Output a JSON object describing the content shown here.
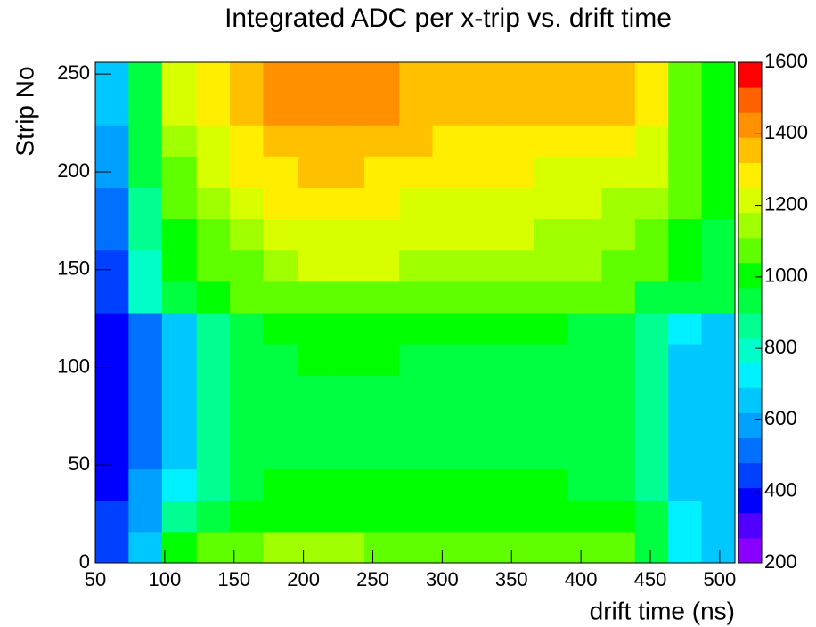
{
  "chart_data": {
    "type": "heatmap",
    "title": "Integrated ADC per x-trip vs. drift time",
    "xlabel": "drift time (ns)",
    "ylabel": "Strip No",
    "xbins": [
      50,
      74,
      98,
      123,
      147,
      171,
      196,
      220,
      244,
      269,
      293,
      317,
      342,
      366,
      390,
      415,
      439,
      463,
      487,
      511
    ],
    "ybins": [
      0,
      16,
      32,
      48,
      64,
      80,
      96,
      112,
      128,
      144,
      160,
      176,
      192,
      208,
      224,
      240,
      256
    ],
    "z": [
      [
        450,
        650,
        1000,
        1050,
        1100,
        1150,
        1150,
        1150,
        1100,
        1100,
        1100,
        1100,
        1100,
        1100,
        1100,
        1050,
        900,
        700,
        650
      ],
      [
        420,
        600,
        850,
        950,
        1000,
        1000,
        1000,
        1000,
        1000,
        1000,
        1000,
        1000,
        1000,
        1000,
        1000,
        980,
        900,
        700,
        650
      ],
      [
        400,
        550,
        700,
        880,
        950,
        980,
        980,
        980,
        970,
        970,
        970,
        970,
        970,
        970,
        960,
        940,
        850,
        680,
        650
      ],
      [
        380,
        530,
        660,
        860,
        930,
        960,
        960,
        960,
        960,
        960,
        960,
        960,
        960,
        950,
        940,
        920,
        850,
        670,
        640
      ],
      [
        370,
        520,
        650,
        850,
        920,
        950,
        950,
        950,
        950,
        950,
        950,
        950,
        950,
        940,
        930,
        910,
        840,
        670,
        640
      ],
      [
        370,
        520,
        640,
        840,
        920,
        950,
        960,
        960,
        960,
        960,
        950,
        950,
        950,
        940,
        930,
        910,
        840,
        670,
        640
      ],
      [
        380,
        520,
        650,
        850,
        930,
        960,
        970,
        970,
        970,
        960,
        960,
        960,
        960,
        950,
        940,
        920,
        840,
        680,
        650
      ],
      [
        400,
        520,
        660,
        860,
        940,
        980,
        990,
        990,
        990,
        980,
        980,
        980,
        980,
        970,
        960,
        940,
        860,
        700,
        680
      ],
      [
        450,
        800,
        950,
        1000,
        1050,
        1100,
        1100,
        1100,
        1100,
        1100,
        1100,
        1100,
        1100,
        1100,
        1080,
        1050,
        950,
        950,
        900
      ],
      [
        460,
        820,
        980,
        1050,
        1100,
        1150,
        1180,
        1180,
        1180,
        1170,
        1160,
        1150,
        1150,
        1140,
        1120,
        1100,
        1050,
        1000,
        950
      ],
      [
        480,
        850,
        1000,
        1080,
        1150,
        1200,
        1220,
        1220,
        1220,
        1200,
        1200,
        1190,
        1180,
        1170,
        1150,
        1120,
        1080,
        1020,
        960
      ],
      [
        500,
        880,
        1050,
        1120,
        1200,
        1250,
        1260,
        1260,
        1250,
        1240,
        1230,
        1220,
        1210,
        1200,
        1190,
        1160,
        1120,
        1040,
        980
      ],
      [
        550,
        900,
        1100,
        1180,
        1250,
        1300,
        1320,
        1320,
        1300,
        1280,
        1260,
        1250,
        1250,
        1240,
        1230,
        1220,
        1180,
        1060,
        1000
      ],
      [
        600,
        920,
        1150,
        1230,
        1300,
        1350,
        1380,
        1380,
        1350,
        1320,
        1300,
        1290,
        1290,
        1280,
        1300,
        1280,
        1220,
        1080,
        1000
      ],
      [
        620,
        930,
        1180,
        1260,
        1350,
        1400,
        1420,
        1420,
        1390,
        1350,
        1330,
        1320,
        1320,
        1320,
        1350,
        1320,
        1250,
        1100,
        1010
      ],
      [
        640,
        950,
        1200,
        1280,
        1380,
        1420,
        1430,
        1430,
        1400,
        1370,
        1350,
        1350,
        1350,
        1350,
        1380,
        1350,
        1260,
        1100,
        1020
      ]
    ],
    "xlim": [
      50,
      511
    ],
    "xticks": [
      50,
      100,
      150,
      200,
      250,
      300,
      350,
      400,
      450,
      500
    ],
    "ylim": [
      0,
      256
    ],
    "yticks": [
      0,
      50,
      100,
      150,
      200,
      250
    ],
    "zlim": [
      200,
      1600
    ],
    "zticks": [
      200,
      400,
      600,
      800,
      1000,
      1200,
      1400,
      1600
    ],
    "palette": [
      "#8a00ff",
      "#5000ff",
      "#0000ff",
      "#0040ff",
      "#0070ff",
      "#00a0ff",
      "#00c8ff",
      "#00f0ff",
      "#00ffc8",
      "#00ff90",
      "#00ff40",
      "#00ff00",
      "#60ff00",
      "#a0ff00",
      "#d8ff00",
      "#ffee00",
      "#ffc000",
      "#ff9000",
      "#ff6000",
      "#ff0000"
    ]
  }
}
